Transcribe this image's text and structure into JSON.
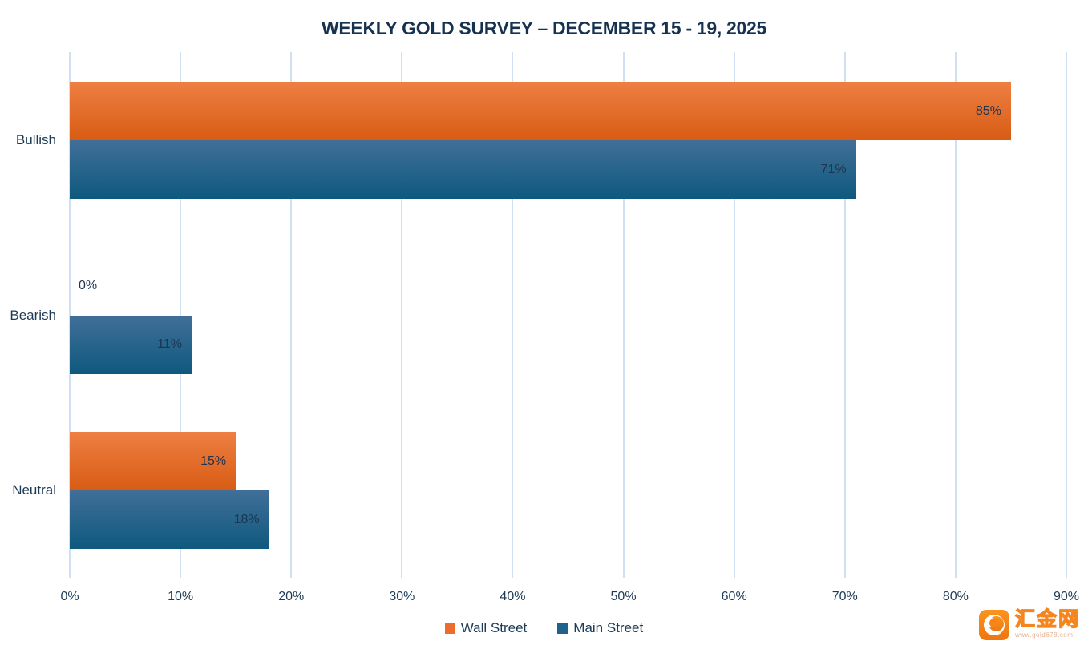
{
  "title": "WEEKLY GOLD SURVEY – DECEMBER 15 - 19, 2025",
  "chart_data": {
    "type": "bar",
    "orientation": "horizontal",
    "title": "WEEKLY GOLD SURVEY – DECEMBER 15 - 19, 2025",
    "categories": [
      "Bullish",
      "Bearish",
      "Neutral"
    ],
    "series": [
      {
        "name": "Wall Street",
        "values": [
          85,
          0,
          15
        ],
        "color_top": "#ee7f43",
        "color_bottom": "#d85c14",
        "legend_color": "#ed6c2d"
      },
      {
        "name": "Main Street",
        "values": [
          71,
          11,
          18
        ],
        "color_top": "#416f98",
        "color_bottom": "#0e597e",
        "legend_color": "#1f628c"
      }
    ],
    "value_suffix": "%",
    "xlim": [
      0,
      90
    ],
    "x_ticks": [
      0,
      10,
      20,
      30,
      40,
      50,
      60,
      70,
      80,
      90
    ],
    "x_tick_suffix": "%",
    "grid": true,
    "gridline_color": "#cfe0f2",
    "legend_position": "bottom",
    "data_label_color": "#1e3450",
    "axis_text_color": "#1d3a57",
    "title_color": "#16324f"
  },
  "watermark": {
    "site_name": "汇金网",
    "site_url": "www.gold678.com",
    "logo_icon": "crescent-swirl-icon",
    "brand_color": "#f5851f"
  }
}
